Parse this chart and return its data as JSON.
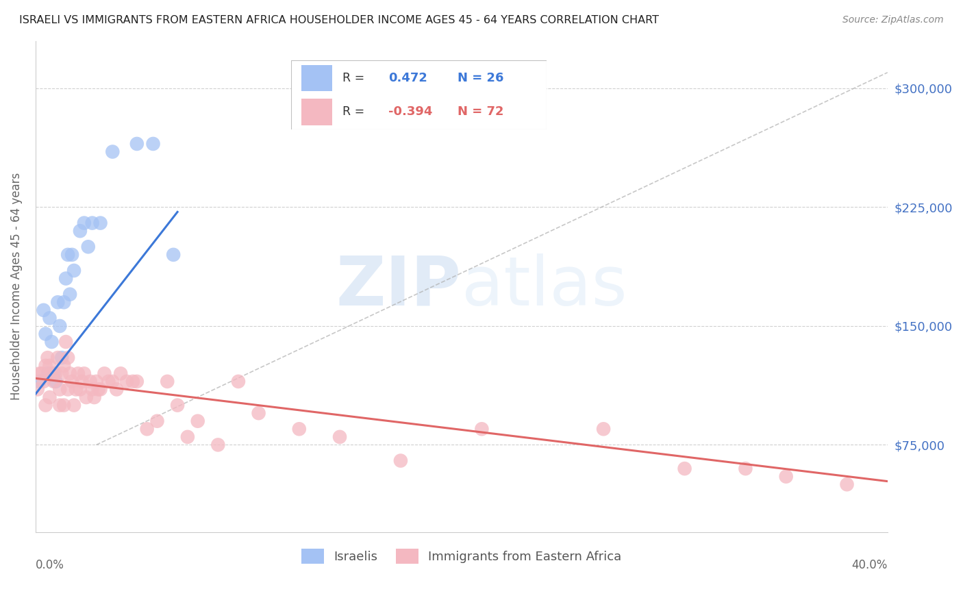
{
  "title": "ISRAELI VS IMMIGRANTS FROM EASTERN AFRICA HOUSEHOLDER INCOME AGES 45 - 64 YEARS CORRELATION CHART",
  "source": "Source: ZipAtlas.com",
  "ylabel": "Householder Income Ages 45 - 64 years",
  "ytick_values": [
    75000,
    150000,
    225000,
    300000
  ],
  "ylim": [
    20000,
    330000
  ],
  "xlim": [
    0.0,
    0.42
  ],
  "watermark_zip": "ZIP",
  "watermark_atlas": "atlas",
  "blue_color": "#a4c2f4",
  "pink_color": "#f4b8c1",
  "blue_line_color": "#3c78d8",
  "pink_line_color": "#e06666",
  "dashed_line_color": "#b0b0b0",
  "grid_color": "#d0d0d0",
  "title_color": "#222222",
  "right_tick_color": "#4472c4",
  "israelis_x": [
    0.002,
    0.004,
    0.005,
    0.006,
    0.007,
    0.008,
    0.009,
    0.01,
    0.011,
    0.012,
    0.013,
    0.014,
    0.015,
    0.016,
    0.017,
    0.018,
    0.019,
    0.022,
    0.024,
    0.026,
    0.028,
    0.032,
    0.038,
    0.05,
    0.058,
    0.068
  ],
  "israelis_y": [
    115000,
    160000,
    145000,
    120000,
    155000,
    140000,
    120000,
    115000,
    165000,
    150000,
    130000,
    165000,
    180000,
    195000,
    170000,
    195000,
    185000,
    210000,
    215000,
    200000,
    215000,
    215000,
    260000,
    265000,
    265000,
    195000
  ],
  "immigrants_x": [
    0.001,
    0.002,
    0.003,
    0.004,
    0.005,
    0.005,
    0.006,
    0.007,
    0.007,
    0.008,
    0.009,
    0.01,
    0.011,
    0.012,
    0.012,
    0.013,
    0.014,
    0.014,
    0.015,
    0.016,
    0.016,
    0.017,
    0.018,
    0.019,
    0.02,
    0.021,
    0.022,
    0.023,
    0.024,
    0.025,
    0.027,
    0.028,
    0.029,
    0.03,
    0.031,
    0.032,
    0.034,
    0.036,
    0.038,
    0.04,
    0.042,
    0.045,
    0.048,
    0.05,
    0.055,
    0.06,
    0.065,
    0.07,
    0.075,
    0.08,
    0.09,
    0.1,
    0.11,
    0.13,
    0.15,
    0.18,
    0.22,
    0.28,
    0.32,
    0.35,
    0.37,
    0.4
  ],
  "immigrants_y": [
    110000,
    120000,
    120000,
    115000,
    125000,
    100000,
    130000,
    125000,
    105000,
    120000,
    115000,
    120000,
    130000,
    110000,
    100000,
    120000,
    125000,
    100000,
    140000,
    130000,
    110000,
    120000,
    115000,
    100000,
    110000,
    120000,
    110000,
    115000,
    120000,
    105000,
    115000,
    110000,
    105000,
    115000,
    110000,
    110000,
    120000,
    115000,
    115000,
    110000,
    120000,
    115000,
    115000,
    115000,
    85000,
    90000,
    115000,
    100000,
    80000,
    90000,
    75000,
    115000,
    95000,
    85000,
    80000,
    65000,
    85000,
    85000,
    60000,
    60000,
    55000,
    50000
  ],
  "blue_line_x": [
    0.0,
    0.07
  ],
  "blue_line_y": [
    107000,
    222000
  ],
  "pink_line_x": [
    0.0,
    0.42
  ],
  "pink_line_y": [
    117000,
    52000
  ],
  "dash_line_x": [
    0.03,
    0.42
  ],
  "dash_line_y": [
    75000,
    310000
  ]
}
